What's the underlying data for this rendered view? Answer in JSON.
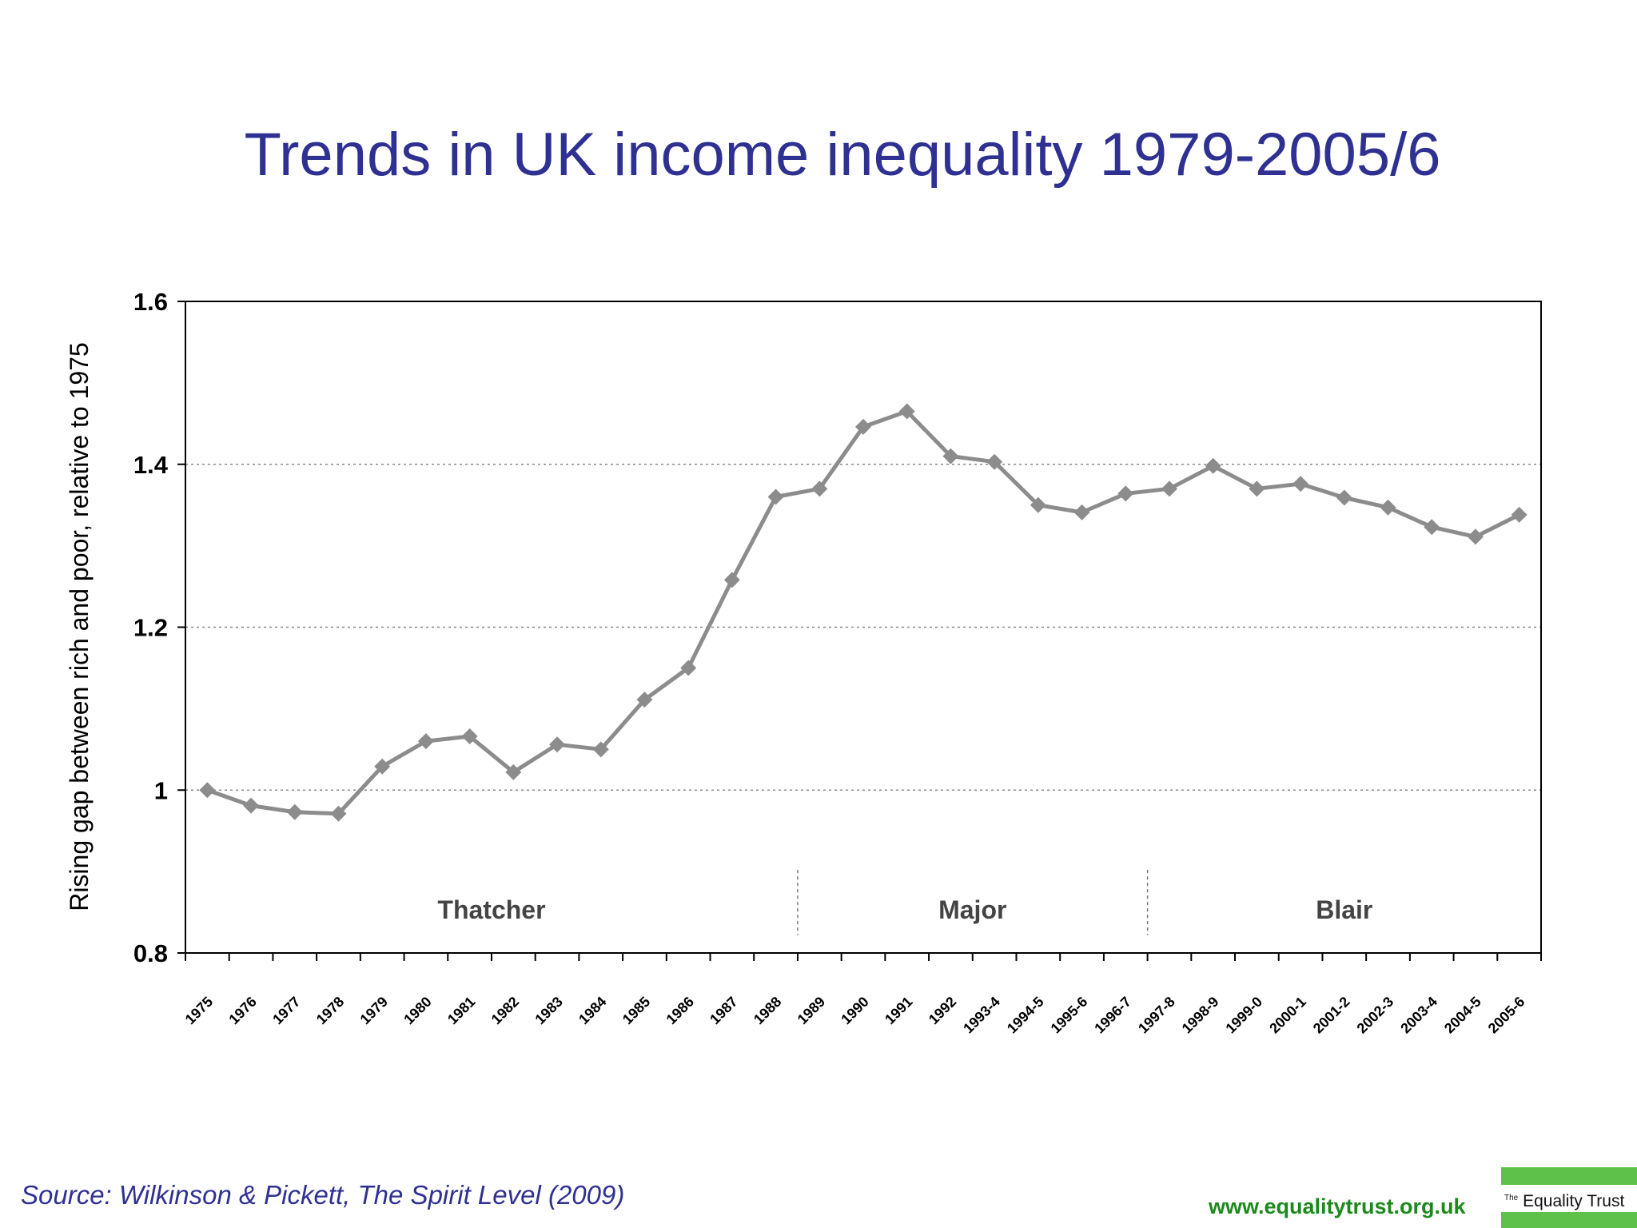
{
  "title": "Trends in UK income inequality 1979-2005/6",
  "source": "Source: Wilkinson & Pickett, The Spirit Level (2009)",
  "website": "www.equalitytrust.org.uk",
  "logo": {
    "small": "The",
    "name": "Equality Trust"
  },
  "colors": {
    "title": "#2e3192",
    "series": "#8c8c8c",
    "website": "#1a8a1a",
    "logo": "#5cc24a"
  },
  "chart_data": {
    "type": "line",
    "title": "Trends in UK income inequality 1979-2005/6",
    "xlabel": "",
    "ylabel": "Rising gap between rich and poor, relative to 1975",
    "ylim": [
      0.8,
      1.6
    ],
    "yticks": [
      "0.8",
      "1",
      "1.2",
      "1.4",
      "1.6"
    ],
    "grid": "horizontal dotted",
    "categories": [
      "1975",
      "1976",
      "1977",
      "1978",
      "1979",
      "1980",
      "1981",
      "1982",
      "1983",
      "1984",
      "1985",
      "1986",
      "1987",
      "1988",
      "1989",
      "1990",
      "1991",
      "1992",
      "1993-4",
      "1994-5",
      "1995-6",
      "1996-7",
      "1997-8",
      "1998-9",
      "1999-0",
      "2000-1",
      "2001-2",
      "2002-3",
      "2003-4",
      "2004-5",
      "2005-6"
    ],
    "series": [
      {
        "values": [
          1.0,
          0.981,
          0.973,
          0.971,
          1.029,
          1.06,
          1.066,
          1.022,
          1.056,
          1.05,
          1.111,
          1.15,
          1.258,
          1.36,
          1.37,
          1.446,
          1.465,
          1.41,
          1.403,
          1.35,
          1.341,
          1.364,
          1.37,
          1.398,
          1.37,
          1.376,
          1.359,
          1.347,
          1.323,
          1.311,
          1.338
        ]
      }
    ],
    "annotations": [
      "Thatcher",
      "Major",
      "Blair"
    ],
    "era_dividers_after": [
      "1988",
      "1996-7"
    ]
  }
}
